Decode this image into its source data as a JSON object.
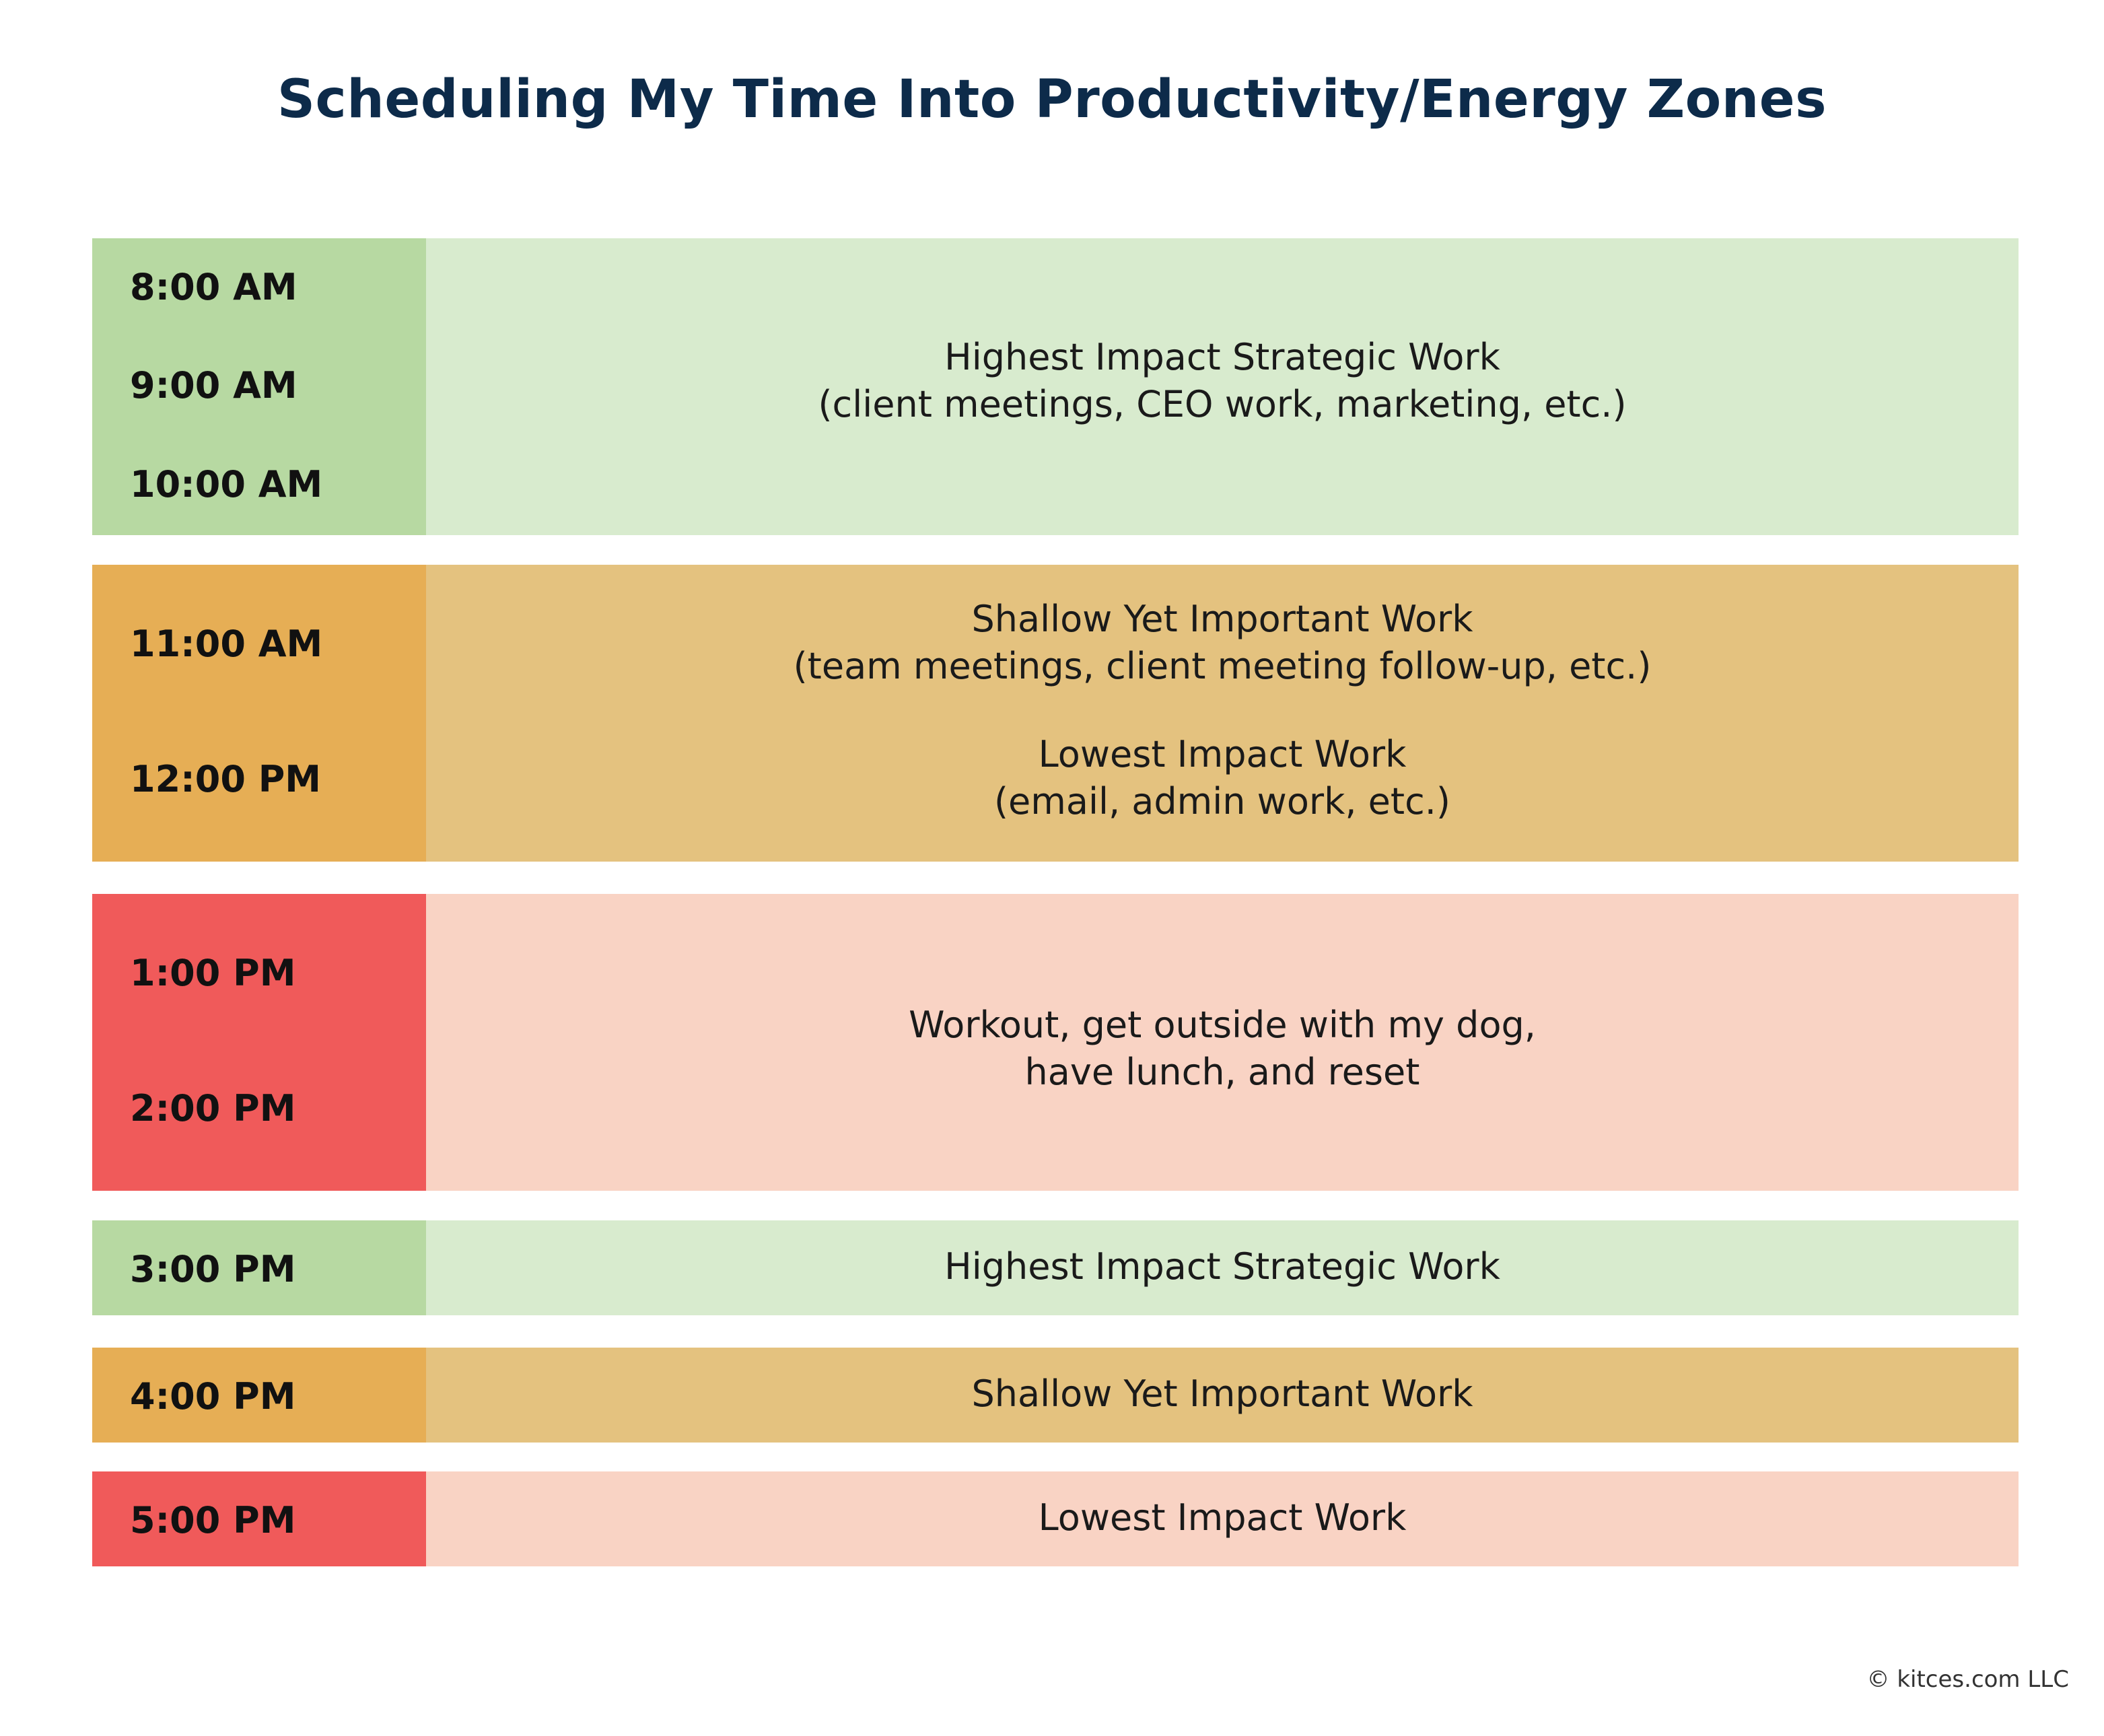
{
  "title": "Scheduling My Time Into Productivity/Energy Zones",
  "colors": {
    "green_time": "#b7d9a2",
    "green_task": "#d8ebce",
    "orange_time": "#e6ae55",
    "orange_task": "#e4c27f",
    "red_time": "#f05a5a",
    "red_task": "#f9d3c4"
  },
  "blocks": [
    {
      "times": [
        "8:00 AM",
        "9:00 AM",
        "10:00 AM"
      ],
      "tasks": [
        {
          "label": "Highest Impact Strategic Work",
          "detail": "(client meetings, CEO work, marketing, etc.)"
        }
      ]
    },
    {
      "times": [
        "11:00 AM",
        "12:00 PM"
      ],
      "tasks": [
        {
          "label": "Shallow Yet Important Work",
          "detail": "(team meetings, client meeting follow-up, etc.)"
        },
        {
          "label": "Lowest Impact Work",
          "detail": "(email, admin work, etc.)"
        }
      ]
    },
    {
      "times": [
        "1:00 PM",
        "2:00 PM"
      ],
      "tasks": [
        {
          "label": "Workout, get outside with my dog,",
          "detail": "have lunch, and reset"
        }
      ]
    },
    {
      "times": [
        "3:00 PM"
      ],
      "tasks": [
        {
          "label": "Highest Impact Strategic Work"
        }
      ]
    },
    {
      "times": [
        "4:00 PM"
      ],
      "tasks": [
        {
          "label": "Shallow Yet Important Work"
        }
      ]
    },
    {
      "times": [
        "5:00 PM"
      ],
      "tasks": [
        {
          "label": "Lowest Impact Work"
        }
      ]
    }
  ],
  "copyright": "© kitces.com LLC"
}
